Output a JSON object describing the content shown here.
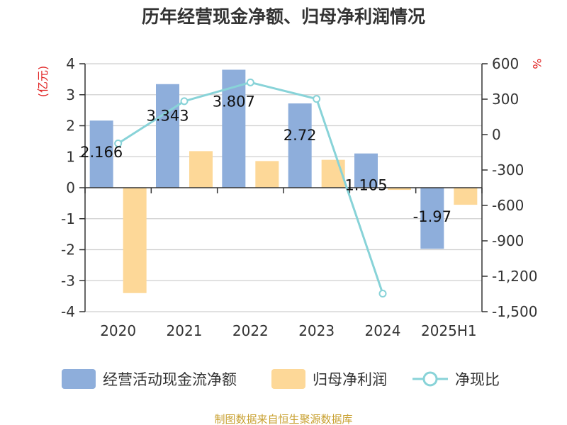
{
  "chart_data": {
    "type": "bar",
    "title": "历年经营现金净额、归母净利润情况",
    "categories": [
      "2020",
      "2021",
      "2022",
      "2023",
      "2024",
      "2025H1"
    ],
    "series": [
      {
        "name": "经营活动现金流净额",
        "type": "bar",
        "axis": "left",
        "color": "#8eaedb",
        "values": [
          2.166,
          3.343,
          3.807,
          2.72,
          1.105,
          -1.97
        ],
        "labels": [
          "2.166",
          "3.343",
          "3.807",
          "2.72",
          "1.105",
          "-1.97"
        ]
      },
      {
        "name": "归母净利润",
        "type": "bar",
        "axis": "left",
        "color": "#fdd898",
        "values": [
          -3.4,
          1.18,
          0.86,
          0.9,
          -0.07,
          -0.55
        ]
      },
      {
        "name": "净现比",
        "type": "line",
        "axis": "right",
        "color": "#88d3d8",
        "values": [
          -75,
          283,
          442,
          302,
          -1347,
          null
        ]
      }
    ],
    "y_left": {
      "unit": "(亿元)",
      "ylim": [
        -4,
        4
      ],
      "ticks": [
        4,
        3,
        2,
        1,
        0,
        -1,
        -2,
        -3,
        -4
      ],
      "tick_labels": [
        "4",
        "3",
        "2",
        "1",
        "0",
        "-1",
        "-2",
        "-3",
        "-4"
      ]
    },
    "y_right": {
      "unit": "%",
      "ylim": [
        -1500,
        600
      ],
      "ticks": [
        600,
        300,
        0,
        -300,
        -600,
        -900,
        -1200,
        -1500
      ],
      "tick_labels": [
        "600",
        "300",
        "0",
        "-300",
        "-600",
        "-900",
        "-1,200",
        "-1,500"
      ]
    },
    "grid": true,
    "legend_position": "bottom",
    "source": "制图数据来自恒生聚源数据库"
  }
}
